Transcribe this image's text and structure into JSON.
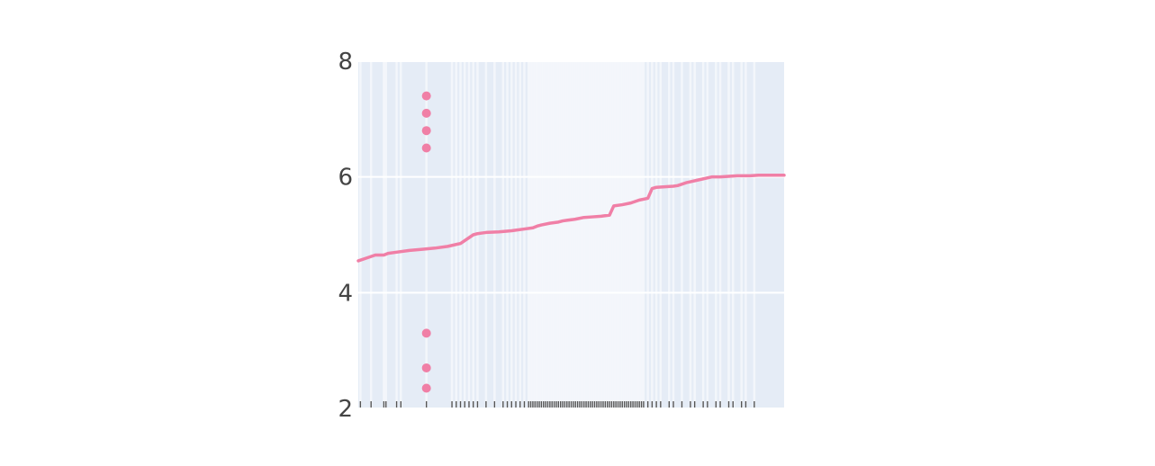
{
  "chart_data": {
    "type": "line",
    "title": "",
    "xlabel": "",
    "ylabel": "",
    "xlim": [
      0,
      100
    ],
    "ylim": [
      2,
      8
    ],
    "y_ticks": [
      "2",
      "4",
      "6",
      "8"
    ],
    "x_ticks": [],
    "grid": true,
    "legend": "none",
    "colors": {
      "plot_bg": "#e5ecf6",
      "grid": "#ffffff",
      "series": "#f07fa6",
      "rug": "#555555",
      "tick_text": "#444444"
    },
    "series": [
      {
        "kind": "line",
        "x": [
          0,
          2,
          4,
          6,
          7,
          9,
          12,
          15,
          18,
          21,
          24,
          27,
          28,
          29,
          30,
          33,
          36,
          39,
          41,
          42,
          43,
          45,
          47,
          48,
          49,
          51,
          53,
          55,
          57,
          59,
          60,
          62,
          64,
          66,
          68,
          69,
          70,
          72,
          74,
          75,
          77,
          80,
          83,
          85,
          87,
          89,
          92,
          94,
          96,
          98,
          100
        ],
        "y": [
          4.55,
          4.6,
          4.65,
          4.65,
          4.68,
          4.7,
          4.73,
          4.75,
          4.77,
          4.8,
          4.85,
          5.0,
          5.02,
          5.03,
          5.04,
          5.05,
          5.07,
          5.1,
          5.12,
          5.15,
          5.17,
          5.2,
          5.22,
          5.24,
          5.25,
          5.27,
          5.3,
          5.31,
          5.32,
          5.34,
          5.5,
          5.52,
          5.55,
          5.6,
          5.63,
          5.8,
          5.82,
          5.83,
          5.84,
          5.85,
          5.9,
          5.95,
          6.0,
          6.0,
          6.01,
          6.02,
          6.02,
          6.03,
          6.03,
          6.03,
          6.03
        ]
      },
      {
        "kind": "scatter",
        "x": [
          16,
          16,
          16,
          16,
          16,
          16,
          16
        ],
        "y": [
          7.4,
          7.1,
          6.8,
          6.5,
          3.3,
          2.7,
          2.35
        ]
      }
    ],
    "rug_x": [
      0.5,
      3,
      6,
      6.5,
      9,
      10,
      16,
      22,
      23,
      24,
      25,
      26,
      27,
      28,
      30,
      32,
      34,
      35,
      36,
      37,
      38,
      39,
      40,
      40.5,
      41,
      41.5,
      42,
      42.5,
      43,
      43.5,
      44,
      44.5,
      45,
      45.5,
      46,
      46.5,
      47,
      47.5,
      48,
      48.5,
      49,
      49.5,
      50,
      50.5,
      51,
      51.5,
      52,
      52.5,
      53,
      53.5,
      54,
      54.5,
      55,
      55.5,
      56,
      56.5,
      57,
      57.5,
      58,
      58.5,
      59,
      59.5,
      60,
      60.5,
      61,
      61.5,
      62,
      62.5,
      63,
      63.5,
      64,
      64.5,
      65,
      65.5,
      66,
      66.5,
      67,
      68,
      69,
      70,
      71,
      73,
      74,
      76,
      78,
      79,
      81,
      82,
      84,
      85,
      87,
      88,
      90,
      91,
      93
    ]
  }
}
